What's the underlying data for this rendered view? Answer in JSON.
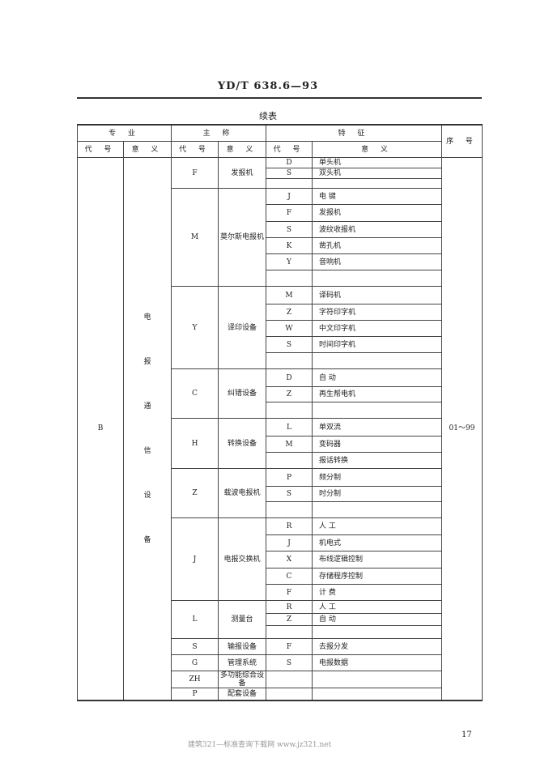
{
  "header": {
    "doc_id": "YD/T 638.6—93",
    "caption": "续表"
  },
  "columns": {
    "specialty": "专  业",
    "main_name": "主  称",
    "feature": "特    征",
    "serial": "序    号",
    "code": "代 号",
    "meaning": "意 义"
  },
  "specialty": {
    "code": "B",
    "meaning_chars": [
      "电",
      "报",
      "通",
      "信",
      "设",
      "备"
    ]
  },
  "serial_range": "01～99",
  "groups": [
    {
      "code": "F",
      "meaning": "发报机",
      "features": [
        [
          "D",
          "单头机"
        ],
        [
          "S",
          "双头机"
        ],
        [
          "",
          ""
        ]
      ]
    },
    {
      "code": "M",
      "meaning": "莫尔斯电报机",
      "features": [
        [
          "J",
          "电  键"
        ],
        [
          "F",
          "发报机"
        ],
        [
          "S",
          "波纹收报机"
        ],
        [
          "K",
          "凿孔机"
        ],
        [
          "Y",
          "音响机"
        ],
        [
          "",
          ""
        ]
      ]
    },
    {
      "code": "Y",
      "meaning": "译印设备",
      "features": [
        [
          "M",
          "译码机"
        ],
        [
          "Z",
          "字符印字机"
        ],
        [
          "W",
          "中文印字机"
        ],
        [
          "S",
          "时间印字机"
        ],
        [
          "",
          ""
        ]
      ]
    },
    {
      "code": "C",
      "meaning": "纠错设备",
      "features": [
        [
          "D",
          "自  动"
        ],
        [
          "Z",
          "再生帮电机"
        ],
        [
          "",
          ""
        ]
      ]
    },
    {
      "code": "H",
      "meaning": "转换设备",
      "features": [
        [
          "L",
          "单双流"
        ],
        [
          "M",
          "变码器"
        ],
        [
          "",
          "报话转换"
        ]
      ]
    },
    {
      "code": "Z",
      "meaning": "载波电报机",
      "features": [
        [
          "P",
          "频分制"
        ],
        [
          "S",
          "时分制"
        ],
        [
          "",
          ""
        ]
      ]
    },
    {
      "code": "J",
      "meaning": "电报交换机",
      "features": [
        [
          "R",
          "人  工"
        ],
        [
          "J",
          "机电式"
        ],
        [
          "X",
          "布线逻辑控制"
        ],
        [
          "C",
          "存储程序控制"
        ],
        [
          "F",
          "计  费"
        ]
      ]
    },
    {
      "code": "L",
      "meaning": "测量台",
      "features": [
        [
          "R",
          "人  工"
        ],
        [
          "Z",
          "自  动"
        ],
        [
          "",
          ""
        ]
      ]
    },
    {
      "code": "S",
      "meaning": "输报设备",
      "features": [
        [
          "F",
          "去报分发"
        ]
      ]
    },
    {
      "code": "G",
      "meaning": "管理系统",
      "features": [
        [
          "S",
          "电报数据"
        ]
      ]
    },
    {
      "code": "ZH",
      "meaning": "多功能综合设  备",
      "features": [
        [
          "",
          ""
        ]
      ]
    },
    {
      "code": "P",
      "meaning": "配套设备",
      "features": [
        [
          "",
          ""
        ]
      ]
    }
  ],
  "footer": {
    "page_number": "17",
    "watermark": "建筑321—标准查询下载网    www.jz321.net"
  }
}
